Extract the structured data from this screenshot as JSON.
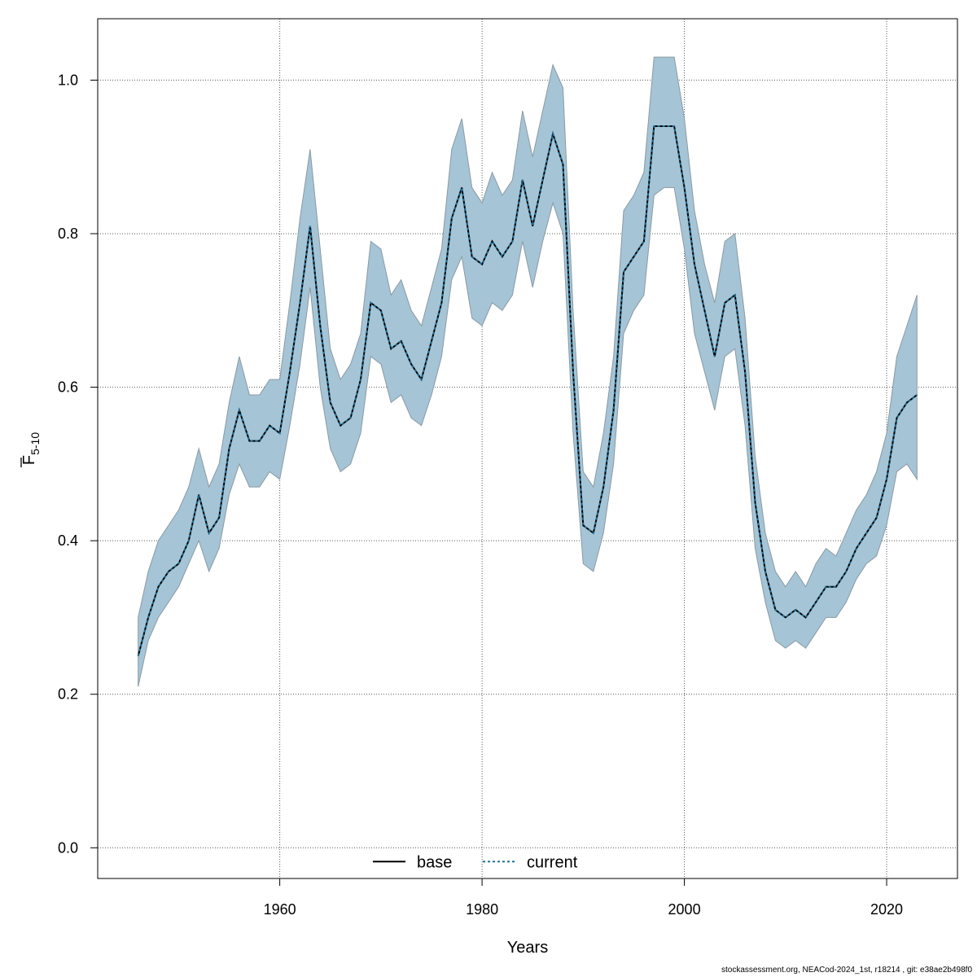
{
  "chart_data": {
    "type": "line",
    "xlabel": "Years",
    "ylabel": {
      "base": "F",
      "subscript": "5-10"
    },
    "xlim": [
      1942,
      2027
    ],
    "ylim": [
      -0.04,
      1.08
    ],
    "x_ticks": [
      1960,
      1980,
      2000,
      2020
    ],
    "y_ticks": [
      0.0,
      0.2,
      0.4,
      0.6,
      0.8,
      1.0
    ],
    "grid": true,
    "legend": {
      "placement": "bottom-center",
      "entries": [
        "base",
        "current"
      ]
    },
    "band_color": "#a5c4d5",
    "band_edge_color": "#8a9aa5",
    "base_color": "#000000",
    "current_color": "#1f6e95",
    "x": [
      1946,
      1947,
      1948,
      1949,
      1950,
      1951,
      1952,
      1953,
      1954,
      1955,
      1956,
      1957,
      1958,
      1959,
      1960,
      1961,
      1962,
      1963,
      1964,
      1965,
      1966,
      1967,
      1968,
      1969,
      1970,
      1971,
      1972,
      1973,
      1974,
      1975,
      1976,
      1977,
      1978,
      1979,
      1980,
      1981,
      1982,
      1983,
      1984,
      1985,
      1986,
      1987,
      1988,
      1989,
      1990,
      1991,
      1992,
      1993,
      1994,
      1995,
      1996,
      1997,
      1998,
      1999,
      2000,
      2001,
      2002,
      2003,
      2004,
      2005,
      2006,
      2007,
      2008,
      2009,
      2010,
      2011,
      2012,
      2013,
      2014,
      2015,
      2016,
      2017,
      2018,
      2019,
      2020,
      2021,
      2022,
      2023
    ],
    "series": [
      {
        "name": "base",
        "style": "solid",
        "values": [
          0.25,
          0.3,
          0.34,
          0.36,
          0.37,
          0.4,
          0.46,
          0.41,
          0.43,
          0.52,
          0.57,
          0.53,
          0.53,
          0.55,
          0.54,
          0.62,
          0.71,
          0.81,
          0.68,
          0.58,
          0.55,
          0.56,
          0.61,
          0.71,
          0.7,
          0.65,
          0.66,
          0.63,
          0.61,
          0.66,
          0.71,
          0.82,
          0.86,
          0.77,
          0.76,
          0.79,
          0.77,
          0.79,
          0.87,
          0.81,
          0.87,
          0.93,
          0.89,
          0.62,
          0.42,
          0.41,
          0.47,
          0.57,
          0.75,
          0.77,
          0.79,
          0.94,
          0.94,
          0.94,
          0.86,
          0.76,
          0.7,
          0.64,
          0.71,
          0.72,
          0.62,
          0.45,
          0.36,
          0.31,
          0.3,
          0.31,
          0.3,
          0.32,
          0.34,
          0.34,
          0.36,
          0.39,
          0.41,
          0.43,
          0.48,
          0.56,
          0.58,
          0.59
        ]
      },
      {
        "name": "current",
        "style": "dashed",
        "values": [
          0.25,
          0.3,
          0.34,
          0.36,
          0.37,
          0.4,
          0.46,
          0.41,
          0.43,
          0.52,
          0.57,
          0.53,
          0.53,
          0.55,
          0.54,
          0.62,
          0.71,
          0.81,
          0.68,
          0.58,
          0.55,
          0.56,
          0.61,
          0.71,
          0.7,
          0.65,
          0.66,
          0.63,
          0.61,
          0.66,
          0.71,
          0.82,
          0.86,
          0.77,
          0.76,
          0.79,
          0.77,
          0.79,
          0.87,
          0.81,
          0.87,
          0.93,
          0.89,
          0.62,
          0.42,
          0.41,
          0.47,
          0.57,
          0.75,
          0.77,
          0.79,
          0.94,
          0.94,
          0.94,
          0.86,
          0.76,
          0.7,
          0.64,
          0.71,
          0.72,
          0.62,
          0.45,
          0.36,
          0.31,
          0.3,
          0.31,
          0.3,
          0.32,
          0.34,
          0.34,
          0.36,
          0.39,
          0.41,
          0.43,
          0.48,
          0.56,
          0.58,
          0.59
        ]
      }
    ],
    "band": {
      "upper": [
        0.3,
        0.36,
        0.4,
        0.42,
        0.44,
        0.47,
        0.52,
        0.47,
        0.5,
        0.58,
        0.64,
        0.59,
        0.59,
        0.61,
        0.61,
        0.71,
        0.82,
        0.91,
        0.78,
        0.65,
        0.61,
        0.63,
        0.67,
        0.79,
        0.78,
        0.72,
        0.74,
        0.7,
        0.68,
        0.73,
        0.78,
        0.91,
        0.95,
        0.86,
        0.84,
        0.88,
        0.85,
        0.87,
        0.96,
        0.9,
        0.96,
        1.02,
        0.99,
        0.7,
        0.49,
        0.47,
        0.54,
        0.64,
        0.83,
        0.85,
        0.88,
        1.03,
        1.03,
        1.03,
        0.95,
        0.83,
        0.76,
        0.71,
        0.79,
        0.8,
        0.69,
        0.51,
        0.41,
        0.36,
        0.34,
        0.36,
        0.34,
        0.37,
        0.39,
        0.38,
        0.41,
        0.44,
        0.46,
        0.49,
        0.54,
        0.64,
        0.68,
        0.72
      ],
      "lower": [
        0.21,
        0.27,
        0.3,
        0.32,
        0.34,
        0.37,
        0.4,
        0.36,
        0.39,
        0.46,
        0.5,
        0.47,
        0.47,
        0.49,
        0.48,
        0.55,
        0.63,
        0.73,
        0.6,
        0.52,
        0.49,
        0.5,
        0.54,
        0.64,
        0.63,
        0.58,
        0.59,
        0.56,
        0.55,
        0.59,
        0.64,
        0.74,
        0.77,
        0.69,
        0.68,
        0.71,
        0.7,
        0.72,
        0.79,
        0.73,
        0.79,
        0.84,
        0.8,
        0.54,
        0.37,
        0.36,
        0.41,
        0.5,
        0.67,
        0.7,
        0.72,
        0.85,
        0.86,
        0.86,
        0.78,
        0.67,
        0.62,
        0.57,
        0.64,
        0.65,
        0.55,
        0.39,
        0.32,
        0.27,
        0.26,
        0.27,
        0.26,
        0.28,
        0.3,
        0.3,
        0.32,
        0.35,
        0.37,
        0.38,
        0.42,
        0.49,
        0.5,
        0.48
      ]
    }
  },
  "footer": {
    "text": "stockassessment.org, NEACod-2024_1st, r18214 , git: e38ae2b498f0"
  }
}
